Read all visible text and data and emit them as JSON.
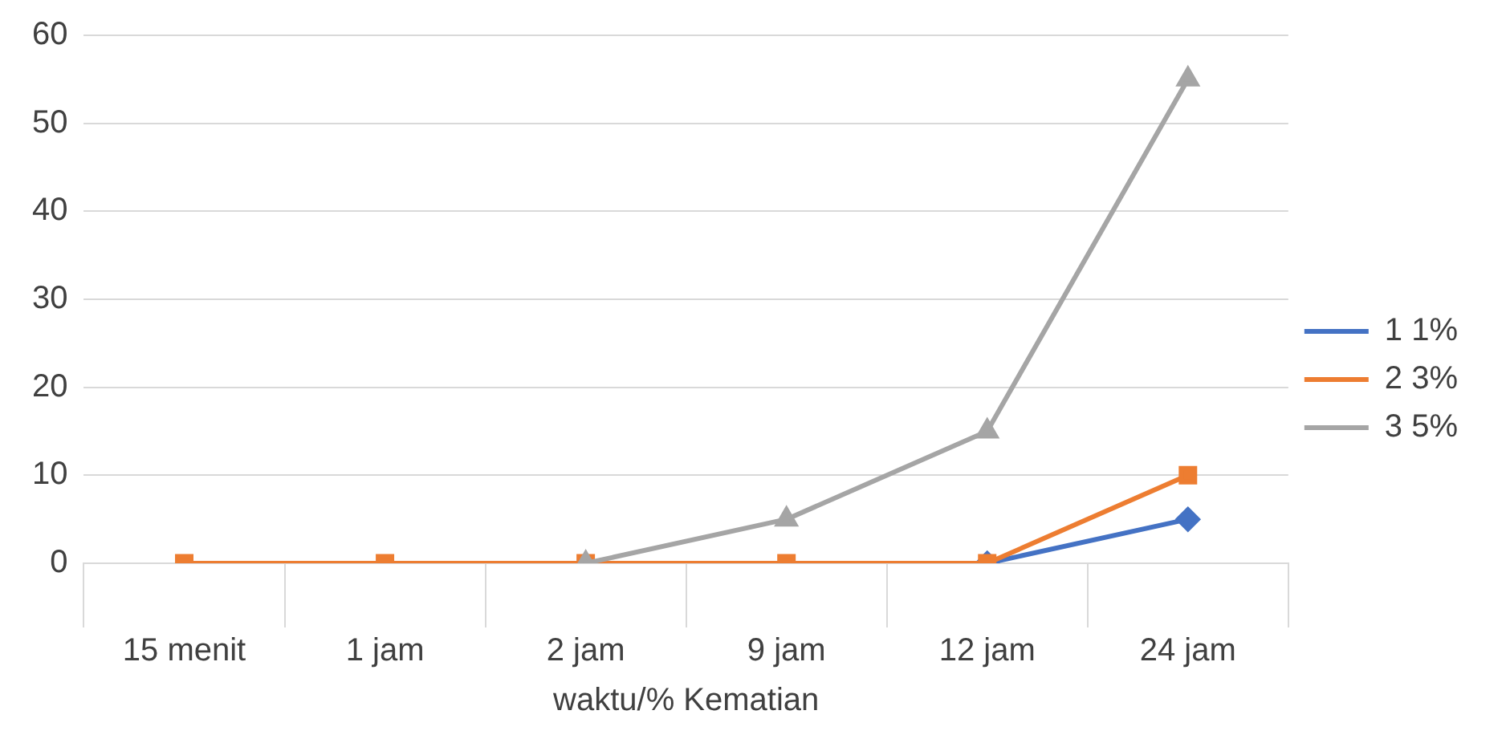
{
  "chart_data": {
    "type": "line",
    "xlabel": "waktu/% Kematian",
    "categories": [
      "15 menit",
      "1 jam",
      "2 jam",
      "9 jam",
      "12 jam",
      "24 jam"
    ],
    "series": [
      {
        "name": "1 1%",
        "color": "#4472c4",
        "marker": "diamond",
        "values": [
          null,
          null,
          null,
          null,
          0,
          5
        ]
      },
      {
        "name": "2 3%",
        "color": "#ed7d31",
        "marker": "square",
        "values": [
          0,
          0,
          0,
          0,
          0,
          10
        ]
      },
      {
        "name": "3 5%",
        "color": "#a5a5a5",
        "marker": "triangle",
        "values": [
          null,
          null,
          0,
          5,
          15,
          55
        ]
      }
    ],
    "ylim": [
      0,
      60
    ],
    "yticks": [
      0,
      10,
      20,
      30,
      40,
      50,
      60
    ],
    "grid": "y",
    "legend": "right"
  }
}
